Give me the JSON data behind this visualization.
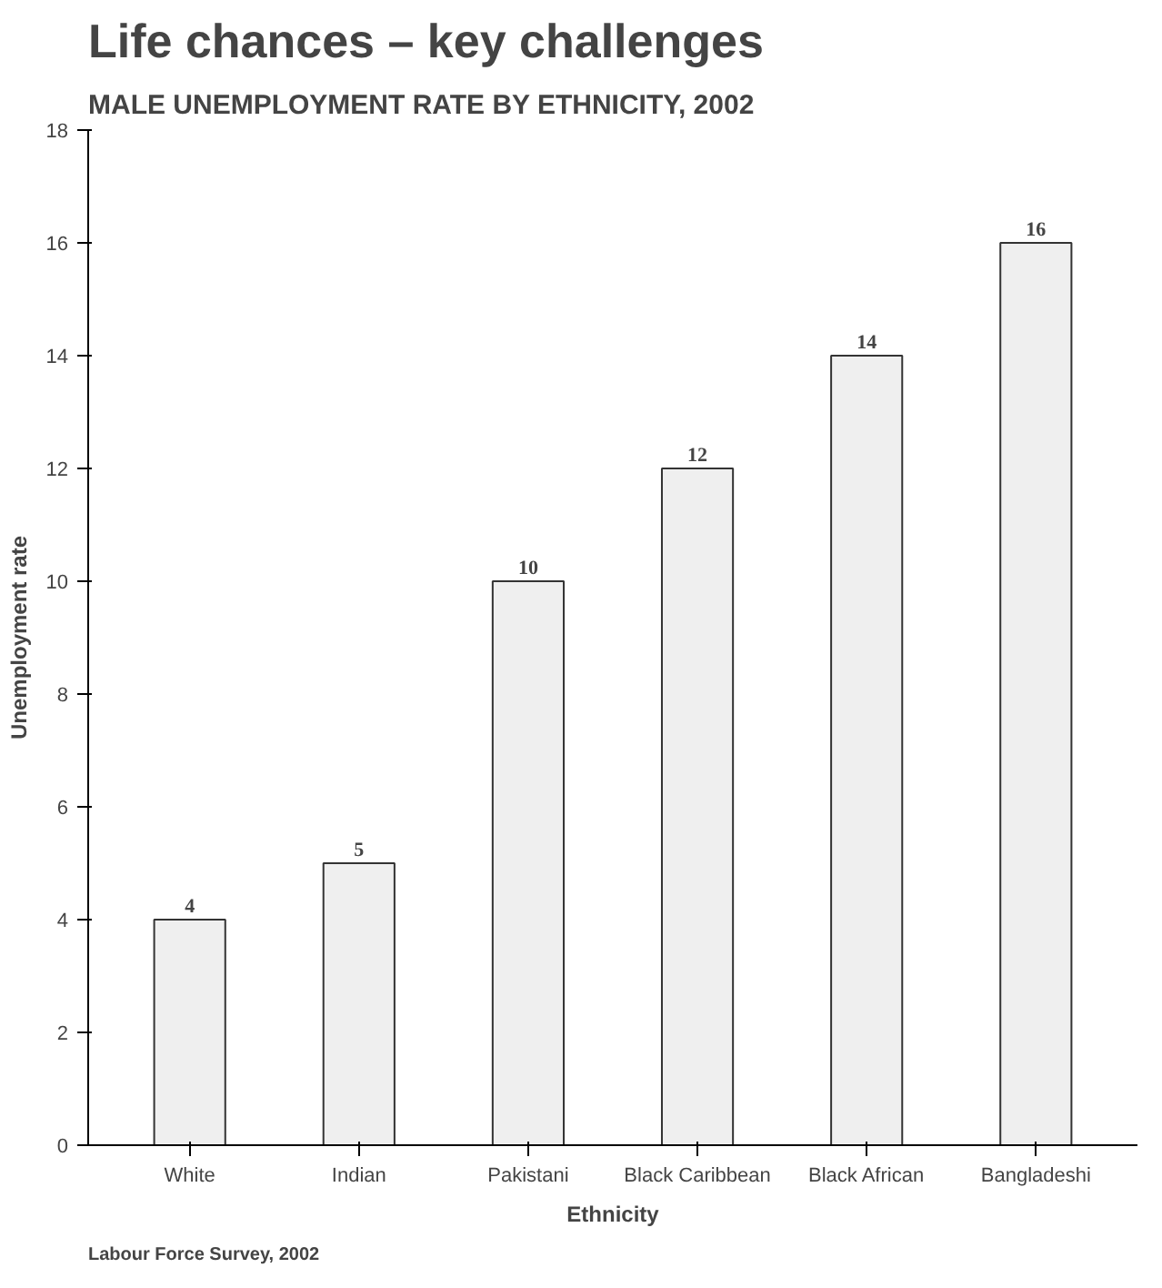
{
  "chart_data": {
    "type": "bar",
    "title": "Life chances – key challenges",
    "subtitle": "MALE UNEMPLOYMENT RATE BY ETHNICITY, 2002",
    "xlabel": "Ethnicity",
    "ylabel": "Unemployment rate",
    "categories": [
      "White",
      "Indian",
      "Pakistani",
      "Black Caribbean",
      "Black African",
      "Bangladeshi"
    ],
    "values": [
      4,
      5,
      10,
      12,
      14,
      16
    ],
    "color": "#efefef",
    "ylim": [
      0,
      18
    ],
    "yticks": [
      0,
      2,
      4,
      6,
      8,
      10,
      12,
      14,
      16,
      18
    ],
    "grid": false,
    "data_labels": true,
    "annotations": [
      "Labour Force Survey, 2002"
    ]
  }
}
